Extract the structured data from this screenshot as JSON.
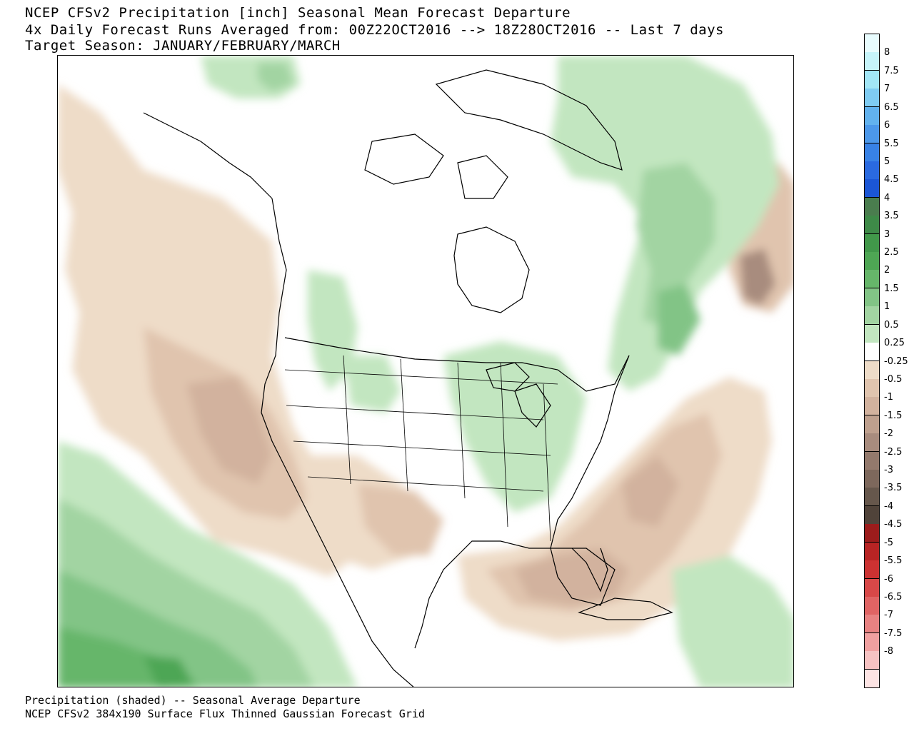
{
  "title": {
    "line1": "NCEP CFSv2 Precipitation [inch] Seasonal Mean Forecast Departure",
    "line2": "4x Daily Forecast Runs Averaged from: 00Z22OCT2016 --> 18Z28OCT2016 -- Last 7 days",
    "line3": "Target Season: JANUARY/FEBRUARY/MARCH"
  },
  "footer": {
    "line1": "Precipitation (shaded) -- Seasonal Average Departure",
    "line2": "NCEP CFSv2 384x190 Surface Flux Thinned Gaussian Forecast Grid"
  },
  "colorbar": {
    "boxes": [
      {
        "color": "#e8fcfe"
      },
      {
        "color": "#c6f4fa"
      },
      {
        "color": "#a2e6f6"
      },
      {
        "color": "#7fccf2"
      },
      {
        "color": "#62b2ee"
      },
      {
        "color": "#4c98ea"
      },
      {
        "color": "#3882e6"
      },
      {
        "color": "#2a6ae0"
      },
      {
        "color": "#1b56d6"
      },
      {
        "color": "#4a7d4e"
      },
      {
        "color": "#3e8a48"
      },
      {
        "color": "#41984a"
      },
      {
        "color": "#4ea654"
      },
      {
        "color": "#66b66a"
      },
      {
        "color": "#82c486"
      },
      {
        "color": "#a2d4a2"
      },
      {
        "color": "#c2e6c0"
      },
      {
        "color": "#ffffff"
      },
      {
        "color": "#eedcc8"
      },
      {
        "color": "#e0c4ae"
      },
      {
        "color": "#d2b29e"
      },
      {
        "color": "#bea08e"
      },
      {
        "color": "#a88c7e"
      },
      {
        "color": "#93796c"
      },
      {
        "color": "#7d685c"
      },
      {
        "color": "#66574c"
      },
      {
        "color": "#50433a"
      },
      {
        "color": "#9c1c1c"
      },
      {
        "color": "#b82424"
      },
      {
        "color": "#cc3232"
      },
      {
        "color": "#d84848"
      },
      {
        "color": "#e06464"
      },
      {
        "color": "#e88282"
      },
      {
        "color": "#f0a0a0"
      },
      {
        "color": "#f6c2c2"
      },
      {
        "color": "#fde4e4"
      }
    ],
    "labels": [
      "8",
      "7.5",
      "7",
      "6.5",
      "6",
      "5.5",
      "5",
      "4.5",
      "4",
      "3.5",
      "3",
      "2.5",
      "2",
      "1.5",
      "1",
      "0.5",
      "0.25",
      "-0.25",
      "-0.5",
      "-1",
      "-1.5",
      "-2",
      "-2.5",
      "-3",
      "-3.5",
      "-4",
      "-4.5",
      "-5",
      "-5.5",
      "-6",
      "-6.5",
      "-7",
      "-7.5",
      "-8"
    ]
  }
}
